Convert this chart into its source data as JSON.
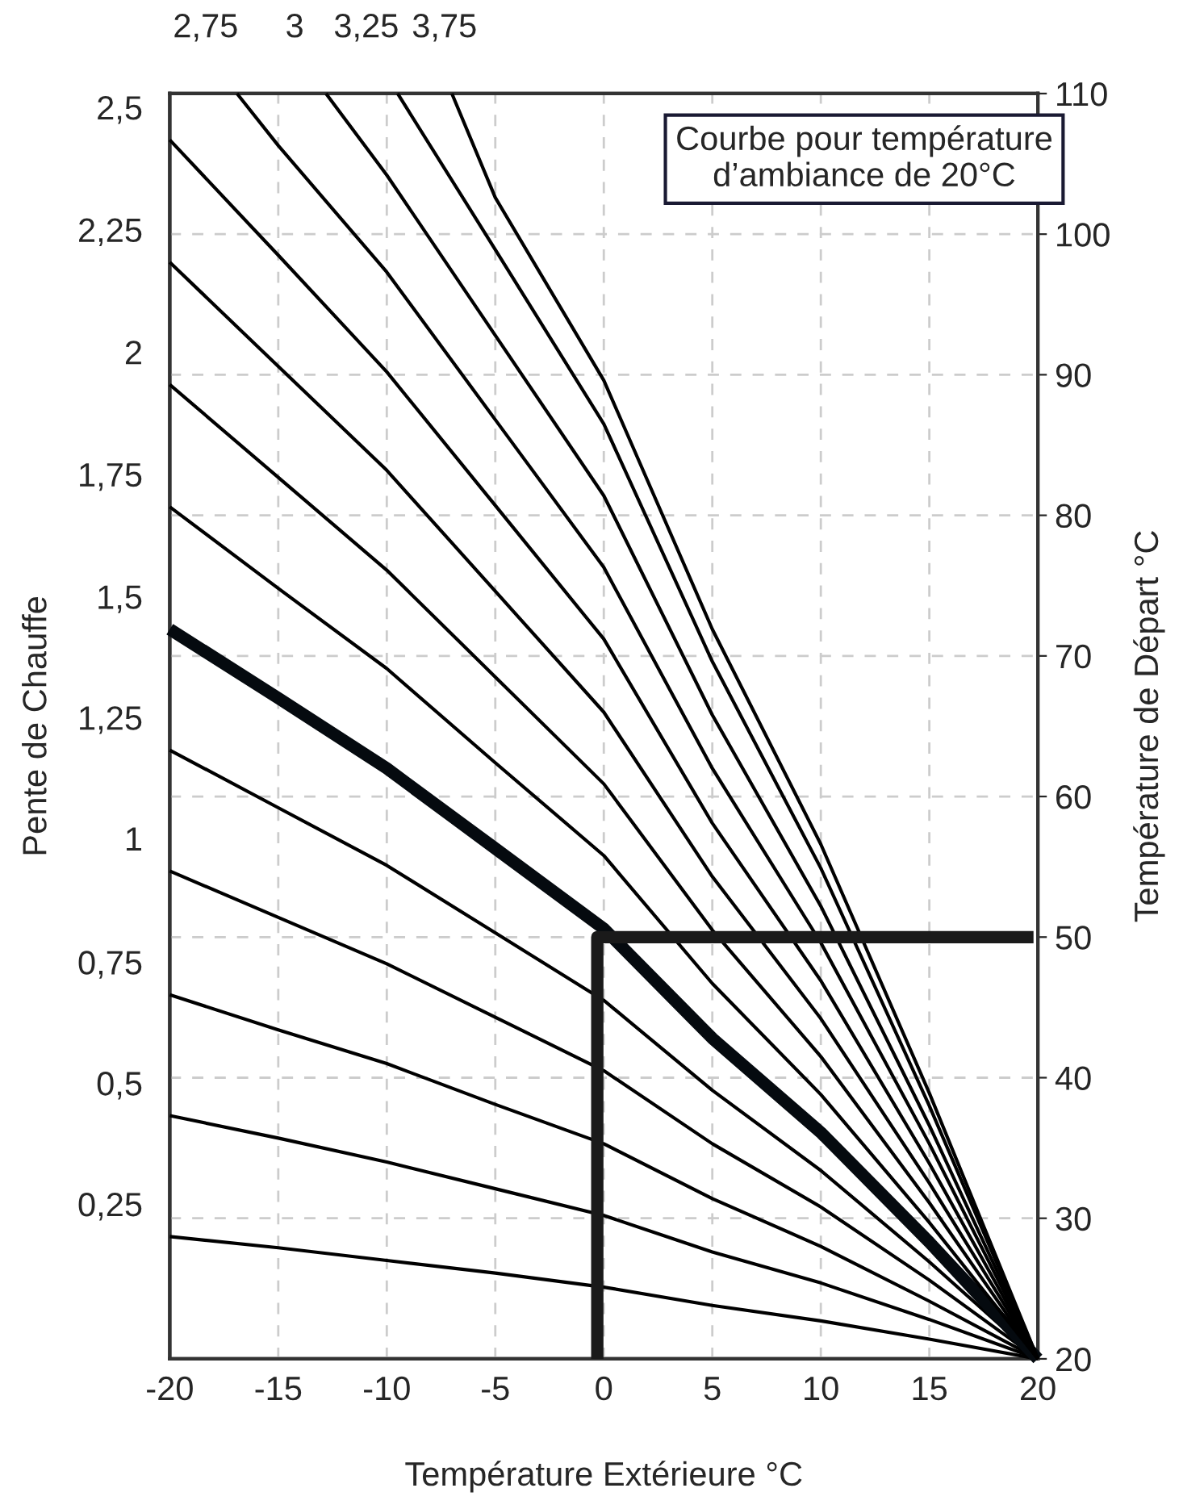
{
  "chart_data": {
    "type": "line",
    "xlabel": "Température Extérieure °C",
    "ylabel": "Pente de Chauffe",
    "y2label": "Température de Départ °C",
    "xlim": [
      -20,
      20
    ],
    "xticks": [
      -20,
      -15,
      -10,
      -5,
      0,
      5,
      10,
      15,
      20
    ],
    "y2lim": [
      20,
      110
    ],
    "y2ticks": [
      20,
      30,
      40,
      50,
      60,
      70,
      80,
      90,
      100,
      110
    ],
    "grid": true,
    "legend": false,
    "line_style": "solid",
    "marker": "none",
    "annotations": [
      "Courbe pour température\nd’ambiance de 20°C"
    ],
    "series": [
      {
        "name": "0,25",
        "color": "#000000",
        "axis": "y2",
        "x": [
          -20,
          -15,
          -10,
          -5,
          0,
          5,
          10,
          15,
          20
        ],
        "values": [
          28.7,
          27.9,
          27.0,
          26.1,
          25.1,
          23.8,
          22.7,
          21.4,
          20
        ]
      },
      {
        "name": "0,5",
        "color": "#000000",
        "axis": "y2",
        "x": [
          -20,
          -15,
          -10,
          -5,
          0,
          5,
          10,
          15,
          20
        ],
        "values": [
          37.3,
          35.7,
          34.0,
          32.1,
          30.2,
          27.6,
          25.4,
          22.8,
          20
        ]
      },
      {
        "name": "0,75",
        "color": "#000000",
        "axis": "y2",
        "x": [
          -20,
          -15,
          -10,
          -5,
          0,
          5,
          10,
          15,
          20
        ],
        "values": [
          45.9,
          43.4,
          41.0,
          38.1,
          35.3,
          31.4,
          28.0,
          24.1,
          20
        ]
      },
      {
        "name": "1",
        "color": "#000000",
        "axis": "y2",
        "x": [
          -20,
          -15,
          -10,
          -5,
          0,
          5,
          10,
          15,
          20
        ],
        "values": [
          54.7,
          51.4,
          48.1,
          44.3,
          40.5,
          35.3,
          30.8,
          25.6,
          20
        ]
      },
      {
        "name": "1,25",
        "color": "#000000",
        "axis": "y2",
        "x": [
          -20,
          -15,
          -10,
          -5,
          0,
          5,
          10,
          15,
          20
        ],
        "values": [
          63.3,
          59.2,
          55.1,
          50.3,
          45.5,
          39.1,
          33.4,
          26.9,
          20
        ]
      },
      {
        "name": "1,5",
        "color": "#050a0f",
        "axis": "y2",
        "x": [
          -20,
          -15,
          -10,
          -5,
          0,
          5,
          10,
          15,
          20
        ],
        "values": [
          71.9,
          67.0,
          62.0,
          56.3,
          50.6,
          42.8,
          36.1,
          28.3,
          20
        ]
      },
      {
        "name": "1,75",
        "color": "#000000",
        "axis": "y2",
        "x": [
          -20,
          -15,
          -10,
          -5,
          0,
          5,
          10,
          15,
          20
        ],
        "values": [
          80.6,
          74.8,
          69.1,
          62.4,
          55.8,
          46.7,
          38.8,
          29.7,
          20
        ]
      },
      {
        "name": "2",
        "color": "#000000",
        "axis": "y2",
        "x": [
          -20,
          -15,
          -10,
          -5,
          0,
          5,
          10,
          15,
          20
        ],
        "values": [
          89.3,
          82.7,
          76.1,
          68.5,
          60.9,
          50.5,
          41.5,
          31.1,
          20
        ]
      },
      {
        "name": "2,25",
        "color": "#000000",
        "axis": "y2",
        "x": [
          -20,
          -15,
          -10,
          -5,
          0,
          5,
          10,
          15,
          20
        ],
        "values": [
          98.0,
          90.6,
          83.2,
          74.6,
          66.0,
          54.3,
          44.2,
          32.5,
          20
        ]
      },
      {
        "name": "2,5",
        "color": "#000000",
        "axis": "y2",
        "x": [
          -20,
          -15,
          -10,
          -5,
          0,
          5,
          10,
          15,
          20
        ],
        "values": [
          106.7,
          98.5,
          90.2,
          80.7,
          71.2,
          58.1,
          46.9,
          33.9,
          20
        ]
      },
      {
        "name": "2,75",
        "color": "#000000",
        "axis": "y2",
        "x": [
          -16.9,
          -15,
          -10,
          -5,
          0,
          5,
          10,
          15,
          20
        ],
        "values": [
          110,
          106.3,
          97.3,
          86.8,
          76.3,
          62.0,
          49.6,
          35.3,
          20
        ]
      },
      {
        "name": "3",
        "color": "#000000",
        "axis": "y2",
        "x": [
          -12.8,
          -10,
          -5,
          0,
          5,
          10,
          15,
          20
        ],
        "values": [
          110,
          104.2,
          92.8,
          81.4,
          65.8,
          52.2,
          36.6,
          20
        ]
      },
      {
        "name": "3,25",
        "color": "#000000",
        "axis": "y2",
        "x": [
          -9.5,
          -5,
          0,
          5,
          10,
          15,
          20
        ],
        "values": [
          110,
          98.9,
          86.5,
          69.6,
          54.9,
          38.0,
          20
        ]
      },
      {
        "name": "3,75",
        "color": "#000000",
        "axis": "y2",
        "x": [
          -7,
          -5,
          0,
          5,
          10,
          15,
          20
        ],
        "values": [
          110,
          102.6,
          89.6,
          71.9,
          56.6,
          38.9,
          20
        ]
      },
      {
        "color": "#1a1a1a",
        "axis": "y2",
        "x": [
          -0.3,
          -0.3,
          19.8
        ],
        "values": [
          20,
          50,
          50
        ]
      }
    ]
  }
}
